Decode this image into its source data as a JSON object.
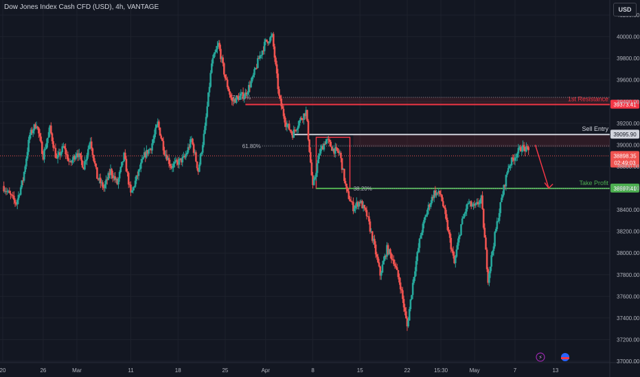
{
  "header": {
    "title": "Dow Jones Index Cash CFD (USD), 4h, VANTAGE",
    "currency_button": "USD"
  },
  "colors": {
    "background": "#131722",
    "grid": "#1e222d",
    "text": "#b2b5be",
    "up": "#26a69a",
    "down": "#ef5350",
    "resistance": "#f23645",
    "entry": "#d1d4dc",
    "take_profit": "#4caf50",
    "arrow": "#f23645"
  },
  "chart_data": {
    "type": "candlestick",
    "ylim": [
      37000,
      40200
    ],
    "y_ticks": [
      37000,
      37200,
      37400,
      37600,
      37800,
      38000,
      38200,
      38400,
      38600,
      38800,
      39000,
      39200,
      39400,
      39600,
      39800,
      40000,
      40200
    ],
    "x_ticks": [
      {
        "label": "20",
        "x": 0
      },
      {
        "label": "26",
        "x": 6
      },
      {
        "label": "Mar",
        "x": 11
      },
      {
        "label": "11",
        "x": 19
      },
      {
        "label": "18",
        "x": 26
      },
      {
        "label": "25",
        "x": 33
      },
      {
        "label": "Apr",
        "x": 39
      },
      {
        "label": "8",
        "x": 46
      },
      {
        "label": "15",
        "x": 53
      },
      {
        "label": "22",
        "x": 60
      },
      {
        "label": "15:30",
        "x": 65
      },
      {
        "label": "May",
        "x": 70
      },
      {
        "label": "7",
        "x": 76
      },
      {
        "label": "13",
        "x": 82
      }
    ],
    "xlim": [
      0,
      87
    ],
    "series_path": [
      [
        0,
        38620
      ],
      [
        1,
        38540
      ],
      [
        2,
        38460
      ],
      [
        3,
        38680
      ],
      [
        4,
        39090
      ],
      [
        5,
        39200
      ],
      [
        6,
        38900
      ],
      [
        7,
        39150
      ],
      [
        8,
        38860
      ],
      [
        9,
        38980
      ],
      [
        10,
        38820
      ],
      [
        11,
        38940
      ],
      [
        12,
        38800
      ],
      [
        13,
        39050
      ],
      [
        14,
        38700
      ],
      [
        15,
        38600
      ],
      [
        16,
        38760
      ],
      [
        17,
        38640
      ],
      [
        18,
        38900
      ],
      [
        19,
        38540
      ],
      [
        20,
        38720
      ],
      [
        21,
        38900
      ],
      [
        22,
        38980
      ],
      [
        23,
        39200
      ],
      [
        24,
        38940
      ],
      [
        25,
        38800
      ],
      [
        26,
        38840
      ],
      [
        27,
        38880
      ],
      [
        28,
        39050
      ],
      [
        29,
        38760
      ],
      [
        30,
        39150
      ],
      [
        31,
        39750
      ],
      [
        32,
        39930
      ],
      [
        33,
        39620
      ],
      [
        34,
        39400
      ],
      [
        35,
        39440
      ],
      [
        36,
        39470
      ],
      [
        37,
        39600
      ],
      [
        38,
        39800
      ],
      [
        39,
        39950
      ],
      [
        40,
        40000
      ],
      [
        41,
        39440
      ],
      [
        42,
        39200
      ],
      [
        43,
        39100
      ],
      [
        44,
        39220
      ],
      [
        45,
        39310
      ],
      [
        46,
        38600
      ],
      [
        47,
        38930
      ],
      [
        48,
        39050
      ],
      [
        49,
        38960
      ],
      [
        50,
        38920
      ],
      [
        51,
        38570
      ],
      [
        52,
        38420
      ],
      [
        53,
        38480
      ],
      [
        54,
        38350
      ],
      [
        55,
        38100
      ],
      [
        56,
        37800
      ],
      [
        57,
        38040
      ],
      [
        58,
        37930
      ],
      [
        59,
        37700
      ],
      [
        60,
        37320
      ],
      [
        61,
        37800
      ],
      [
        62,
        38170
      ],
      [
        63,
        38400
      ],
      [
        64,
        38560
      ],
      [
        65,
        38540
      ],
      [
        66,
        38230
      ],
      [
        67,
        37900
      ],
      [
        68,
        38260
      ],
      [
        69,
        38460
      ],
      [
        70,
        38420
      ],
      [
        71,
        38500
      ],
      [
        72,
        37760
      ],
      [
        73,
        38160
      ],
      [
        74,
        38500
      ],
      [
        75,
        38800
      ],
      [
        76,
        38900
      ],
      [
        77,
        38980
      ],
      [
        78,
        38940
      ]
    ],
    "levels": [
      {
        "name": "1st Resistance",
        "value": 39373.41,
        "label": "39373.41"
      },
      {
        "name": "Sell Entry",
        "value": 39095.9,
        "label": "39095.90"
      },
      {
        "name": "Take Profit",
        "value": 38597.41,
        "label": "38597.41"
      }
    ],
    "fib_levels": [
      {
        "label": "78.60%",
        "value": 39440
      },
      {
        "label": "61.80%",
        "value": 38990
      },
      {
        "label": "38.20%",
        "value": 38597
      }
    ],
    "current_price": {
      "value": 38898.35,
      "label": "38898.35",
      "countdown": "02:49:03"
    },
    "projection_arrow": {
      "from": [
        79,
        39000
      ],
      "to": [
        81,
        38600
      ]
    }
  }
}
